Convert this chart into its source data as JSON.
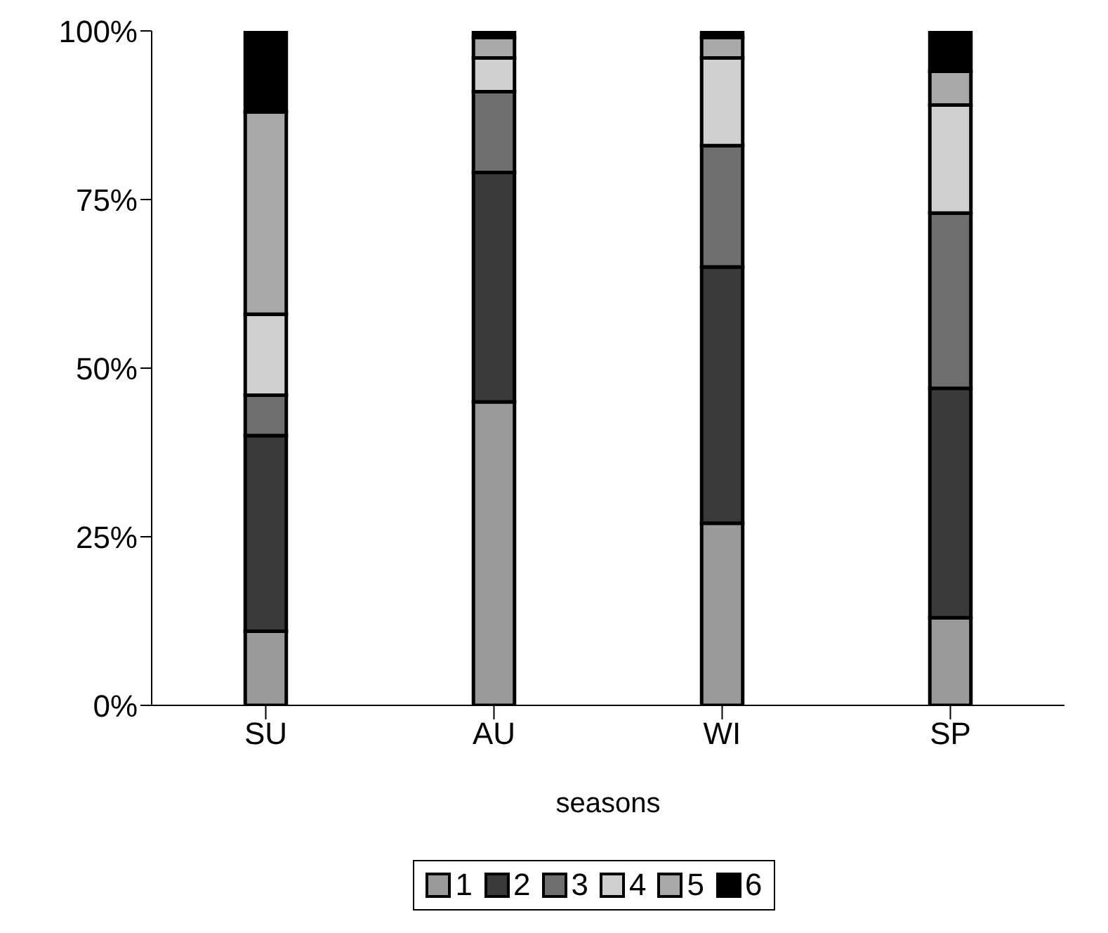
{
  "chart_data": {
    "type": "bar",
    "xlabel": "seasons",
    "categories": [
      "SU",
      "AU",
      "WI",
      "SP"
    ],
    "stacked": true,
    "series": [
      {
        "name": "1",
        "color": "#9a9a9a",
        "values": [
          11,
          45,
          27,
          13
        ]
      },
      {
        "name": "2",
        "color": "#3a3a3a",
        "values": [
          29,
          34,
          38,
          34
        ]
      },
      {
        "name": "3",
        "color": "#6e6e6e",
        "values": [
          6,
          12,
          18,
          26
        ]
      },
      {
        "name": "4",
        "color": "#d0d0d0",
        "values": [
          12,
          5,
          13,
          16
        ]
      },
      {
        "name": "5",
        "color": "#a8a8a8",
        "values": [
          30,
          3,
          3,
          5
        ]
      },
      {
        "name": "6",
        "color": "#000000",
        "values": [
          12,
          1,
          1,
          6
        ]
      }
    ],
    "ylim": [
      0,
      100
    ],
    "yticks": [
      {
        "value": 0,
        "label": "0%"
      },
      {
        "value": 25,
        "label": "25%"
      },
      {
        "value": 50,
        "label": "50%"
      },
      {
        "value": 75,
        "label": "75%"
      },
      {
        "value": 100,
        "label": "100%"
      }
    ],
    "grid": false,
    "legend": "bottom"
  }
}
